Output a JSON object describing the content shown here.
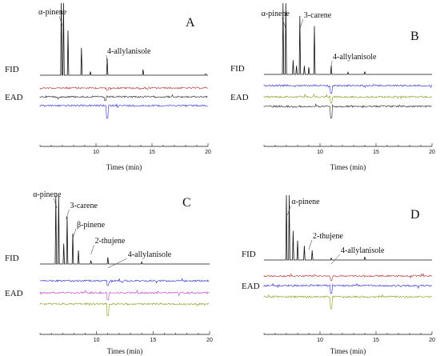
{
  "chart_data": [
    {
      "panel": "A",
      "type": "line",
      "xlabel": "Times (min)",
      "xlim": [
        5,
        20
      ],
      "xticks": [
        10,
        15,
        20
      ],
      "fid_label": "FID",
      "ead_label": "EAD",
      "peak_labels": [
        {
          "text": "α-pinene",
          "time": 7.0
        },
        {
          "text": "4-allylanisole",
          "time": 11.0
        }
      ],
      "fid_peaks": [
        {
          "time": 6.9,
          "height": 1.0
        },
        {
          "time": 7.1,
          "height": 1.0
        },
        {
          "time": 7.5,
          "height": 0.62
        },
        {
          "time": 8.7,
          "height": 0.38
        },
        {
          "time": 9.5,
          "height": 0.05
        },
        {
          "time": 11.0,
          "height": 0.23
        },
        {
          "time": 14.2,
          "height": 0.08
        },
        {
          "time": 19.8,
          "height": 0.02
        }
      ],
      "ead_traces": [
        {
          "color": "#b03030",
          "response_time": 11.0,
          "response": 0.5
        },
        {
          "color": "#222222",
          "response_time": 10.8,
          "response": 0.8
        },
        {
          "color": "#2b2bd0",
          "response_time": 11.0,
          "response": 2.6
        }
      ]
    },
    {
      "panel": "B",
      "type": "line",
      "xlabel": "Times (min)",
      "xlim": [
        5,
        20
      ],
      "xticks": [
        10,
        15,
        20
      ],
      "fid_label": "FID",
      "ead_label": "EAD",
      "peak_labels": [
        {
          "text": "α-pinene",
          "time": 6.9
        },
        {
          "text": "3-carene",
          "time": 8.2
        },
        {
          "text": "4-allylanisole",
          "time": 11.0
        }
      ],
      "fid_peaks": [
        {
          "time": 6.7,
          "height": 1.0
        },
        {
          "time": 6.95,
          "height": 1.0
        },
        {
          "time": 7.6,
          "height": 0.2
        },
        {
          "time": 7.9,
          "height": 0.12
        },
        {
          "time": 8.2,
          "height": 0.82
        },
        {
          "time": 8.6,
          "height": 0.12
        },
        {
          "time": 9.0,
          "height": 0.1
        },
        {
          "time": 9.5,
          "height": 0.68
        },
        {
          "time": 11.0,
          "height": 0.12
        },
        {
          "time": 12.5,
          "height": 0.03
        },
        {
          "time": 14.0,
          "height": 0.04
        }
      ],
      "ead_traces": [
        {
          "color": "#2b2bd0",
          "response_time": 11.0,
          "response": 1.6
        },
        {
          "color": "#8a9a1a",
          "response_time": 11.0,
          "response": 1.3
        },
        {
          "color": "#222222",
          "response_time": 11.0,
          "response": 2.4
        }
      ]
    },
    {
      "panel": "C",
      "type": "line",
      "xlabel": "Times (min)",
      "xlim": [
        5,
        20
      ],
      "xticks": [
        10,
        15,
        20
      ],
      "fid_label": "FID",
      "ead_label": "EAD",
      "peak_labels": [
        {
          "text": "α-pinene",
          "time": 6.5
        },
        {
          "text": "3-carene",
          "time": 7.3
        },
        {
          "text": "β-pinene",
          "time": 7.9
        },
        {
          "text": "2-thujene",
          "time": 9.5
        },
        {
          "text": "4-allylanisole",
          "time": 11.0
        }
      ],
      "fid_peaks": [
        {
          "time": 6.4,
          "height": 1.0
        },
        {
          "time": 6.65,
          "height": 1.0
        },
        {
          "time": 7.1,
          "height": 0.3
        },
        {
          "time": 7.4,
          "height": 0.7
        },
        {
          "time": 7.9,
          "height": 0.45
        },
        {
          "time": 8.4,
          "height": 0.2
        },
        {
          "time": 9.5,
          "height": 0.05
        },
        {
          "time": 11.0,
          "height": 0.1
        },
        {
          "time": 14.0,
          "height": 0.03
        }
      ],
      "ead_traces": [
        {
          "color": "#2b2bd0",
          "response_time": 11.0,
          "response": 1.0
        },
        {
          "color": "#c040d0",
          "response_time": 11.0,
          "response": 1.4
        },
        {
          "color": "#8a9a1a",
          "response_time": 11.0,
          "response": 2.4
        }
      ]
    },
    {
      "panel": "D",
      "type": "line",
      "xlabel": "Times (min)",
      "xlim": [
        5,
        20
      ],
      "xticks": [
        10,
        15,
        20
      ],
      "fid_label": "FID",
      "ead_label": "EAD",
      "peak_labels": [
        {
          "text": "α-pinene",
          "time": 7.1
        },
        {
          "text": "2-thujene",
          "time": 9.0
        },
        {
          "text": "4-allylanisole",
          "time": 11.0
        }
      ],
      "fid_peaks": [
        {
          "time": 7.0,
          "height": 1.0
        },
        {
          "time": 7.25,
          "height": 1.0
        },
        {
          "time": 7.6,
          "height": 0.45
        },
        {
          "time": 8.0,
          "height": 0.3
        },
        {
          "time": 8.6,
          "height": 0.22
        },
        {
          "time": 9.3,
          "height": 0.15
        },
        {
          "time": 11.0,
          "height": 0.03
        },
        {
          "time": 14.0,
          "height": 0.05
        }
      ],
      "ead_traces": [
        {
          "color": "#b03030",
          "response_time": 11.0,
          "response": 0.9
        },
        {
          "color": "#2b2bd0",
          "response_time": 11.0,
          "response": 1.6
        },
        {
          "color": "#8a9a1a",
          "response_time": 11.0,
          "response": 2.5
        }
      ]
    }
  ]
}
